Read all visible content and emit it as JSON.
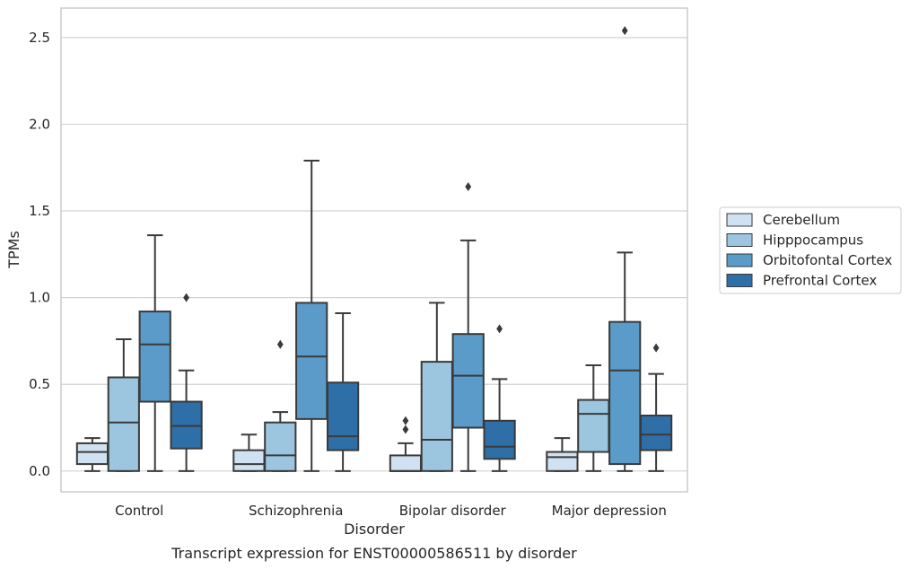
{
  "caption": "Transcript expression for ENST00000586511 by disorder",
  "chart_data": {
    "type": "box",
    "title": "",
    "xlabel": "Disorder",
    "ylabel": "TPMs",
    "ylim": [
      -0.12,
      2.67
    ],
    "yticks": [
      "0.0",
      "0.5",
      "1.0",
      "1.5",
      "2.0",
      "2.5"
    ],
    "grid": "horizontal",
    "legend_position": "right",
    "categories": [
      "Control",
      "Schizophrenia",
      "Bipolar disorder",
      "Major depression"
    ],
    "series": [
      {
        "name": "Cerebellum",
        "color": "#d0e2f1",
        "boxes": [
          {
            "whislo": 0.0,
            "q1": 0.04,
            "med": 0.11,
            "q3": 0.16,
            "whishi": 0.19,
            "fliers": []
          },
          {
            "whislo": 0.0,
            "q1": 0.0,
            "med": 0.04,
            "q3": 0.12,
            "whishi": 0.21,
            "fliers": []
          },
          {
            "whislo": 0.0,
            "q1": 0.0,
            "med": 0.0,
            "q3": 0.09,
            "whishi": 0.16,
            "fliers": [
              0.24,
              0.29
            ]
          },
          {
            "whislo": 0.0,
            "q1": 0.0,
            "med": 0.08,
            "q3": 0.11,
            "whishi": 0.19,
            "fliers": []
          }
        ]
      },
      {
        "name": "Hipppocampus",
        "color": "#9cc6e0",
        "boxes": [
          {
            "whislo": 0.0,
            "q1": 0.0,
            "med": 0.28,
            "q3": 0.54,
            "whishi": 0.76,
            "fliers": []
          },
          {
            "whislo": 0.0,
            "q1": 0.0,
            "med": 0.09,
            "q3": 0.28,
            "whishi": 0.34,
            "fliers": [
              0.73
            ]
          },
          {
            "whislo": 0.0,
            "q1": 0.0,
            "med": 0.18,
            "q3": 0.63,
            "whishi": 0.97,
            "fliers": []
          },
          {
            "whislo": 0.0,
            "q1": 0.11,
            "med": 0.33,
            "q3": 0.41,
            "whishi": 0.61,
            "fliers": []
          }
        ]
      },
      {
        "name": "Orbitofontal Cortex",
        "color": "#5b9bc9",
        "boxes": [
          {
            "whislo": 0.0,
            "q1": 0.4,
            "med": 0.73,
            "q3": 0.92,
            "whishi": 1.36,
            "fliers": []
          },
          {
            "whislo": 0.0,
            "q1": 0.3,
            "med": 0.66,
            "q3": 0.97,
            "whishi": 1.79,
            "fliers": []
          },
          {
            "whislo": 0.0,
            "q1": 0.25,
            "med": 0.55,
            "q3": 0.79,
            "whishi": 1.33,
            "fliers": [
              1.64
            ]
          },
          {
            "whislo": 0.0,
            "q1": 0.04,
            "med": 0.58,
            "q3": 0.86,
            "whishi": 1.26,
            "fliers": [
              2.54
            ]
          }
        ]
      },
      {
        "name": "Prefrontal Cortex",
        "color": "#2f6fa8",
        "boxes": [
          {
            "whislo": 0.0,
            "q1": 0.13,
            "med": 0.26,
            "q3": 0.4,
            "whishi": 0.58,
            "fliers": [
              1.0
            ]
          },
          {
            "whislo": 0.0,
            "q1": 0.12,
            "med": 0.2,
            "q3": 0.51,
            "whishi": 0.91,
            "fliers": []
          },
          {
            "whislo": 0.0,
            "q1": 0.07,
            "med": 0.14,
            "q3": 0.29,
            "whishi": 0.53,
            "fliers": [
              0.82
            ]
          },
          {
            "whislo": 0.0,
            "q1": 0.12,
            "med": 0.21,
            "q3": 0.32,
            "whishi": 0.56,
            "fliers": [
              0.71
            ]
          }
        ]
      }
    ]
  }
}
